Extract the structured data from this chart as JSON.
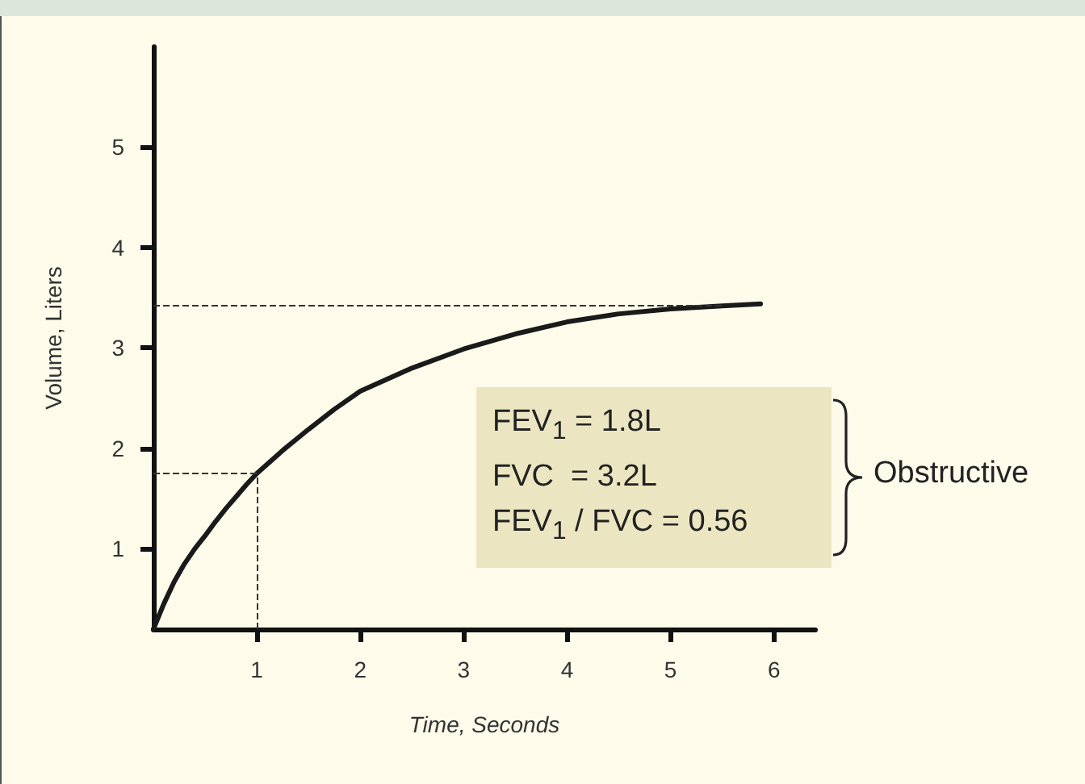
{
  "chart_data": {
    "type": "line",
    "xlabel": "Time, Seconds",
    "ylabel": "Volume, Liters",
    "x": [
      0,
      0.1,
      0.2,
      0.3,
      0.4,
      0.5,
      0.6,
      0.7,
      0.8,
      0.9,
      1,
      1.25,
      1.5,
      1.75,
      2,
      2.5,
      3,
      3.5,
      4,
      4.5,
      5,
      5.5,
      5.87
    ],
    "series": [
      {
        "color": "#1a1a1a",
        "values": [
          0.2,
          0.45,
          0.67,
          0.85,
          1.0,
          1.13,
          1.27,
          1.4,
          1.52,
          1.64,
          1.75,
          1.98,
          2.19,
          2.39,
          2.57,
          2.8,
          2.99,
          3.14,
          3.26,
          3.34,
          3.39,
          3.42,
          3.44
        ]
      }
    ],
    "xlim": [
      0,
      6.4
    ],
    "ylim": [
      0.2,
      6.0
    ],
    "xticks": [
      1,
      2,
      3,
      4,
      5,
      6
    ],
    "yticks": [
      1,
      2,
      3,
      4,
      5
    ],
    "ref_lines": [
      {
        "axis": "y",
        "value": 1.75,
        "line_style": "dashed",
        "color": "#333333"
      },
      {
        "axis": "x",
        "value": 1,
        "line_style": "dashed",
        "color": "#333333"
      },
      {
        "axis": "y",
        "value": 3.42,
        "line_style": "dashed",
        "color": "#333333"
      }
    ],
    "annotations": [
      "FEV$_{1}$ = 1.8L",
      "FVC  = 3.2L",
      "FEV$_{1}$ / FVC = 0.56",
      "Obstructive"
    ],
    "grid": false,
    "marker": "none",
    "line_style": "solid"
  }
}
